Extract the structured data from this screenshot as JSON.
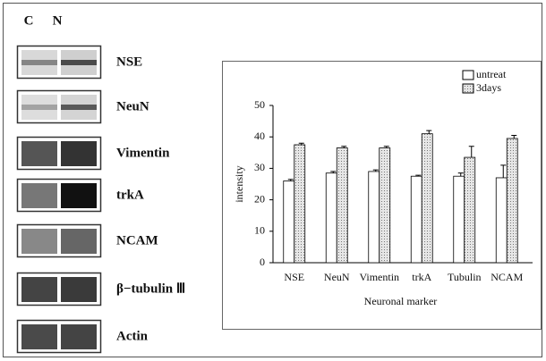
{
  "blot": {
    "lanes": [
      "C",
      "N"
    ],
    "markers": [
      "NSE",
      "NeuN",
      "Vimentin",
      "trkA",
      "NCAM",
      "β−tubulin Ⅲ",
      "Actin"
    ]
  },
  "chart_data": {
    "type": "bar",
    "xlabel": "Neuronal marker",
    "ylabel": "intensity",
    "categories": [
      "NSE",
      "NeuN",
      "Vimentin",
      "trkA",
      "Tubulin",
      "NCAM"
    ],
    "series": [
      {
        "name": "untreat",
        "color": "#ffffff",
        "values": [
          26,
          28.5,
          29,
          27.5,
          27.5,
          27
        ],
        "errors": [
          0.5,
          0.5,
          0.5,
          0.3,
          1,
          4
        ]
      },
      {
        "name": "3days",
        "color": "#cfcfcf",
        "values": [
          37.5,
          36.5,
          36.5,
          41,
          33.5,
          39.5
        ],
        "errors": [
          0.5,
          0.5,
          0.5,
          1,
          3.5,
          1
        ]
      }
    ],
    "ylim": [
      0,
      50
    ],
    "yticks": [
      0,
      10,
      20,
      30,
      40,
      50
    ],
    "legend": "upper right"
  }
}
